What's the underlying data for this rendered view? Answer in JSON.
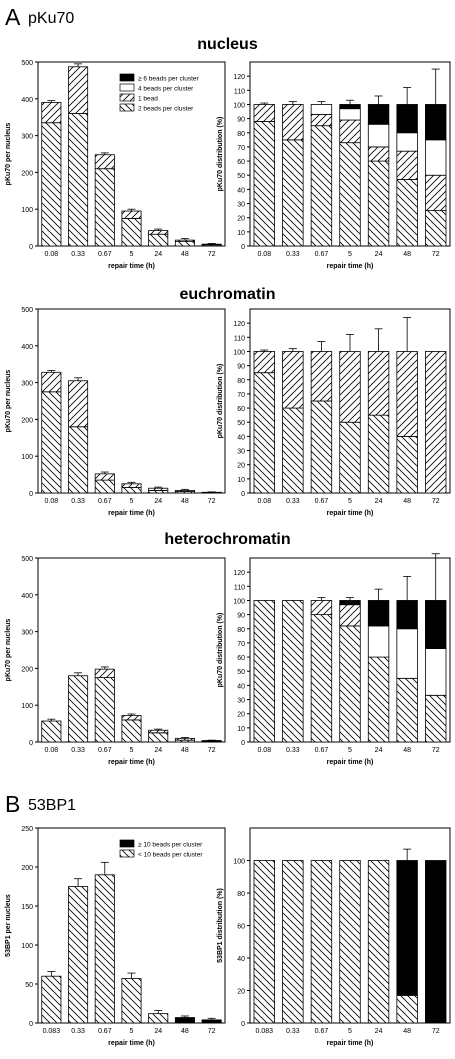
{
  "panels": {
    "A": {
      "letter": "A",
      "title": "pKu70"
    },
    "B": {
      "letter": "B",
      "title": "53BP1"
    }
  },
  "sections": {
    "nucleus": "nucleus",
    "euchromatin": "euchromatin",
    "heterochromatin": "heterochromatin"
  },
  "chart_data": [
    {
      "type": "bar",
      "stacked": true,
      "group": "nucleus",
      "categories": [
        "0.08",
        "0.33",
        "0.67",
        "5",
        "24",
        "48",
        "72"
      ],
      "xlabel": "repair time (h)",
      "ylabel": "pKu70 per nucleus",
      "ylim": [
        0,
        500
      ],
      "yticks": [
        0,
        100,
        200,
        300,
        400,
        500
      ],
      "legend": [
        "≥ 6 beads per cluster",
        "4 beads per cluster",
        "1 bead",
        "2 beads per cluster"
      ],
      "legend_position": "top-right",
      "series": [
        {
          "name": "2 beads per cluster",
          "pattern": "backslash",
          "values": [
            335,
            360,
            210,
            75,
            32,
            12,
            3
          ]
        },
        {
          "name": "1 bead",
          "pattern": "slash",
          "values": [
            55,
            127,
            38,
            20,
            10,
            4,
            2
          ]
        },
        {
          "name": "4 beads per cluster",
          "pattern": "white",
          "values": [
            0,
            0,
            0,
            0,
            0,
            0,
            0
          ]
        },
        {
          "name": "≥ 6 beads per cluster",
          "pattern": "black",
          "values": [
            0,
            0,
            0,
            0,
            0,
            0,
            0
          ]
        }
      ],
      "errors": [
        5,
        8,
        5,
        5,
        4,
        4,
        2
      ]
    },
    {
      "type": "bar",
      "stacked": true,
      "group": "nucleus",
      "categories": [
        "0.08",
        "0.33",
        "0.67",
        "5",
        "24",
        "48",
        "72"
      ],
      "xlabel": "repair time (h)",
      "ylabel": "pKu70 distribution (%)",
      "ylim": [
        0,
        130
      ],
      "yticks": [
        0,
        10,
        20,
        30,
        40,
        50,
        60,
        70,
        80,
        90,
        100,
        110,
        120
      ],
      "series": [
        {
          "name": "2 beads per cluster",
          "pattern": "backslash",
          "values": [
            88,
            75,
            85,
            73,
            60,
            47,
            25
          ]
        },
        {
          "name": "1 bead",
          "pattern": "slash",
          "values": [
            12,
            25,
            8,
            16,
            10,
            20,
            25
          ]
        },
        {
          "name": "4 beads per cluster",
          "pattern": "white",
          "values": [
            0,
            0,
            7,
            8,
            16,
            13,
            25
          ]
        },
        {
          "name": "≥ 6 beads per cluster",
          "pattern": "black",
          "values": [
            0,
            0,
            0,
            3,
            14,
            20,
            25
          ]
        }
      ],
      "errors": [
        1,
        2,
        2,
        3,
        6,
        12,
        25
      ]
    },
    {
      "type": "bar",
      "stacked": true,
      "group": "euchromatin",
      "categories": [
        "0.08",
        "0.33",
        "0.67",
        "5",
        "24",
        "48",
        "72"
      ],
      "xlabel": "repair time (h)",
      "ylabel": "pKu70 per nucleus",
      "ylim": [
        0,
        500
      ],
      "yticks": [
        0,
        100,
        200,
        300,
        400,
        500
      ],
      "series": [
        {
          "name": "2 beads per cluster",
          "pattern": "backslash",
          "values": [
            275,
            180,
            35,
            15,
            7,
            4,
            1
          ]
        },
        {
          "name": "1 bead",
          "pattern": "slash",
          "values": [
            53,
            125,
            17,
            10,
            6,
            3,
            1
          ]
        }
      ],
      "errors": [
        5,
        8,
        5,
        4,
        3,
        3,
        1
      ]
    },
    {
      "type": "bar",
      "stacked": true,
      "group": "euchromatin",
      "categories": [
        "0.08",
        "0.33",
        "0.67",
        "5",
        "24",
        "48",
        "72"
      ],
      "xlabel": "repair time (h)",
      "ylabel": "pKu70 distribution (%)",
      "ylim": [
        0,
        130
      ],
      "yticks": [
        0,
        10,
        20,
        30,
        40,
        50,
        60,
        70,
        80,
        90,
        100,
        110,
        120
      ],
      "series": [
        {
          "name": "2 beads per cluster",
          "pattern": "backslash",
          "values": [
            85,
            60,
            65,
            50,
            55,
            40,
            0
          ]
        },
        {
          "name": "1 bead",
          "pattern": "slash",
          "values": [
            15,
            40,
            35,
            50,
            45,
            60,
            100
          ]
        }
      ],
      "errors": [
        1,
        2,
        7,
        12,
        16,
        24,
        0
      ]
    },
    {
      "type": "bar",
      "stacked": true,
      "group": "heterochromatin",
      "categories": [
        "0.08",
        "0.33",
        "0.67",
        "5",
        "24",
        "48",
        "72"
      ],
      "xlabel": "repair time (h)",
      "ylabel": "pKu70 per nucleus",
      "ylim": [
        0,
        500
      ],
      "yticks": [
        0,
        100,
        200,
        300,
        400,
        500
      ],
      "series": [
        {
          "name": "2 beads per cluster",
          "pattern": "backslash",
          "values": [
            57,
            180,
            175,
            60,
            25,
            5,
            2
          ]
        },
        {
          "name": "1 bead",
          "pattern": "slash",
          "values": [
            0,
            0,
            23,
            12,
            7,
            5,
            2
          ]
        }
      ],
      "errors": [
        5,
        8,
        6,
        4,
        3,
        2,
        1
      ]
    },
    {
      "type": "bar",
      "stacked": true,
      "group": "heterochromatin",
      "categories": [
        "0.08",
        "0.33",
        "0.67",
        "5",
        "24",
        "48",
        "72"
      ],
      "xlabel": "repair time (h)",
      "ylabel": "pKu70 distribution (%)",
      "ylim": [
        0,
        130
      ],
      "yticks": [
        0,
        10,
        20,
        30,
        40,
        50,
        60,
        70,
        80,
        90,
        100,
        110,
        120
      ],
      "series": [
        {
          "name": "2 beads per cluster",
          "pattern": "backslash",
          "values": [
            100,
            100,
            90,
            82,
            60,
            45,
            33
          ]
        },
        {
          "name": "1 bead",
          "pattern": "slash",
          "values": [
            0,
            0,
            10,
            15,
            0,
            0,
            0
          ]
        },
        {
          "name": "4 beads per cluster",
          "pattern": "white",
          "values": [
            0,
            0,
            0,
            0,
            22,
            35,
            33
          ]
        },
        {
          "name": "≥ 6 beads per cluster",
          "pattern": "black",
          "values": [
            0,
            0,
            0,
            3,
            18,
            20,
            34
          ]
        }
      ],
      "errors": [
        0,
        0,
        2,
        2,
        8,
        17,
        33
      ]
    },
    {
      "type": "bar",
      "stacked": true,
      "group": "53BP1",
      "categories": [
        "0.083",
        "0.33",
        "0.67",
        "5",
        "24",
        "48",
        "72"
      ],
      "xlabel": "repair time (h)",
      "ylabel": "53BP1 per nucleus",
      "ylim": [
        0,
        250
      ],
      "yticks": [
        0,
        50,
        100,
        150,
        200,
        250
      ],
      "legend": [
        "≥ 10 beads per cluster",
        "< 10 beads per cluster"
      ],
      "legend_position": "top-right",
      "series": [
        {
          "name": "< 10 beads per cluster",
          "pattern": "backslash",
          "values": [
            60,
            175,
            190,
            57,
            12,
            1,
            0
          ]
        },
        {
          "name": "≥ 10 beads per cluster",
          "pattern": "black",
          "values": [
            0,
            0,
            0,
            0,
            0,
            6,
            4
          ]
        }
      ],
      "errors": [
        6,
        10,
        16,
        7,
        4,
        2,
        2
      ]
    },
    {
      "type": "bar",
      "stacked": true,
      "group": "53BP1",
      "categories": [
        "0.083",
        "0.33",
        "0.67",
        "5",
        "24",
        "48",
        "72"
      ],
      "xlabel": "repair time (h)",
      "ylabel": "53BP1 distribution (%)",
      "ylim": [
        0,
        120
      ],
      "yticks": [
        0,
        20,
        40,
        60,
        80,
        100
      ],
      "series": [
        {
          "name": "< 10 beads per cluster",
          "pattern": "backslash",
          "values": [
            100,
            100,
            100,
            100,
            100,
            17,
            0
          ]
        },
        {
          "name": "≥ 10 beads per cluster",
          "pattern": "black",
          "values": [
            0,
            0,
            0,
            0,
            0,
            83,
            100
          ]
        }
      ],
      "errors": [
        0,
        0,
        0,
        0,
        0,
        7,
        0
      ]
    }
  ]
}
